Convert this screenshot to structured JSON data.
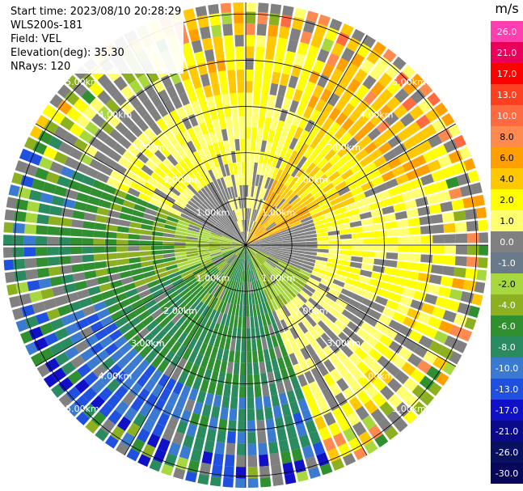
{
  "header": {
    "start_time": "Start time: 2023/08/10 20:28:29",
    "site": "WLS200s-181",
    "field": "Field: VEL",
    "elevation": "Elevation(deg): 35.30",
    "nrays": "NRays: 120"
  },
  "colorbar": {
    "unit": "m/s",
    "ticks": [
      "26.0",
      "21.0",
      "17.0",
      "13.0",
      "10.0",
      "8.0",
      "6.0",
      "4.0",
      "2.0",
      "1.0",
      "0.0",
      "-1.0",
      "-2.0",
      "-4.0",
      "-6.0",
      "-8.0",
      "-10.0",
      "-13.0",
      "-17.0",
      "-21.0",
      "-26.0",
      "-30.0"
    ],
    "colors": [
      "#ff3fb0",
      "#e8005a",
      "#ff0000",
      "#ff4020",
      "#ff6a40",
      "#ff8a50",
      "#ffa000",
      "#ffc800",
      "#ffff00",
      "#ffff70",
      "#808080",
      "#6a7a8a",
      "#a8d840",
      "#8cb020",
      "#309030",
      "#2a8a60",
      "#3a7ad0",
      "#2050e0",
      "#1010c8",
      "#0a0a8a",
      "#081060",
      "#08085a"
    ]
  },
  "chart_data": {
    "type": "ppi",
    "title": "",
    "field": "VEL",
    "units": "m/s",
    "elevation_deg": 35.3,
    "nrays": 120,
    "range_rings_km": [
      "1.00km",
      "2.00km",
      "3.00km",
      "4.00km",
      "5.00km"
    ],
    "ring_label_bearings_deg": [
      45,
      135,
      225,
      315
    ],
    "spokes_deg": [
      0,
      30,
      60,
      90,
      120,
      150,
      180,
      210,
      240,
      270,
      300,
      330
    ],
    "max_range_km": 5.25,
    "sector_dominant_velocity": [
      {
        "bearing_deg": 0,
        "near_km": 1.0,
        "mid_km": 2.0,
        "far_km": 4.0
      },
      {
        "bearing_deg": 45,
        "near_km": 6.0,
        "mid_km": 4.0,
        "far_km": 6.0
      },
      {
        "bearing_deg": 90,
        "near_km": 0.0,
        "mid_km": 2.0,
        "far_km": 2.0
      },
      {
        "bearing_deg": 135,
        "near_km": -2.0,
        "mid_km": 1.0,
        "far_km": 2.0
      },
      {
        "bearing_deg": 180,
        "near_km": -6.0,
        "mid_km": -6.0,
        "far_km": -8.0
      },
      {
        "bearing_deg": 225,
        "near_km": -4.0,
        "mid_km": -6.0,
        "far_km": -10.0
      },
      {
        "bearing_deg": 270,
        "near_km": -2.0,
        "mid_km": -4.0,
        "far_km": -6.0
      },
      {
        "bearing_deg": 315,
        "near_km": 0.0,
        "mid_km": 2.0,
        "far_km": 0.0
      }
    ]
  }
}
